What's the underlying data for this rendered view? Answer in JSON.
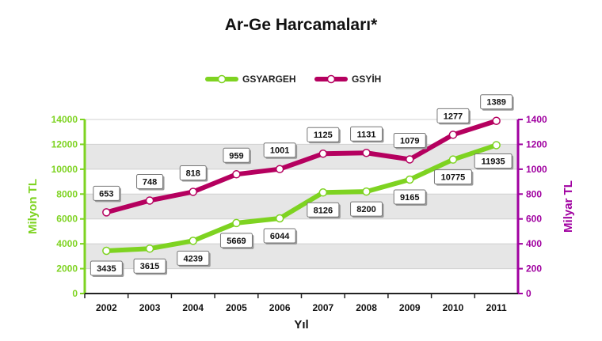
{
  "chart_data": {
    "type": "line",
    "title": "Ar-Ge Harcamaları*",
    "xlabel": "Yıl",
    "ylabel_left": "Milyon TL",
    "ylabel_right": "Milyar TL",
    "x": [
      "2002",
      "2003",
      "2004",
      "2005",
      "2006",
      "2007",
      "2008",
      "2009",
      "2010",
      "2011"
    ],
    "ylim_left": [
      0,
      14000
    ],
    "yticks_left": [
      0,
      2000,
      4000,
      6000,
      8000,
      10000,
      12000,
      14000
    ],
    "ylim_right": [
      0,
      1400
    ],
    "yticks_right": [
      0,
      200,
      400,
      600,
      800,
      1000,
      1200,
      1400
    ],
    "grid": "horizontal bands",
    "legend_position": "top-center",
    "series": [
      {
        "name": "GSYARGEH",
        "axis": "left",
        "color": "#7ed321",
        "values": [
          3435,
          3615,
          4239,
          5669,
          6044,
          8126,
          8200,
          9165,
          10775,
          11935
        ]
      },
      {
        "name": "GSYİH",
        "axis": "right",
        "color": "#b5005f",
        "values": [
          653,
          748,
          818,
          959,
          1001,
          1125,
          1131,
          1079,
          1277,
          1389
        ]
      }
    ],
    "colors": {
      "left_axis": "#7ed321",
      "right_axis": "#a000a0",
      "band": "#e6e6e6"
    }
  }
}
